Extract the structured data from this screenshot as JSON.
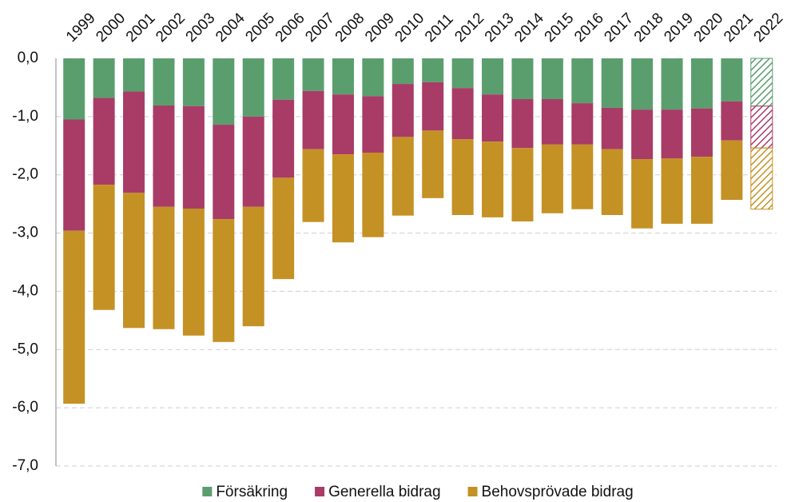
{
  "chart_data": {
    "type": "stacked_bar",
    "categories": [
      "1999",
      "2000",
      "2001",
      "2002",
      "2003",
      "2004",
      "2005",
      "2006",
      "2007",
      "2008",
      "2009",
      "2010",
      "2011",
      "2012",
      "2013",
      "2014",
      "2015",
      "2016",
      "2017",
      "2018",
      "2019",
      "2020",
      "2021",
      "2022"
    ],
    "series": [
      {
        "name": "Försäkring",
        "color": "#5b9e6e",
        "values": [
          -1.05,
          -0.68,
          -0.57,
          -0.81,
          -0.82,
          -1.14,
          -1.0,
          -0.71,
          -0.56,
          -0.62,
          -0.65,
          -0.44,
          -0.41,
          -0.51,
          -0.62,
          -0.7,
          -0.7,
          -0.77,
          -0.85,
          -0.88,
          -0.88,
          -0.86,
          -0.74,
          -0.82
        ]
      },
      {
        "name": "Generella bidrag",
        "color": "#a83c66",
        "values": [
          -1.91,
          -1.49,
          -1.74,
          -1.74,
          -1.76,
          -1.62,
          -1.55,
          -1.34,
          -1.0,
          -1.03,
          -0.97,
          -0.91,
          -0.83,
          -0.88,
          -0.81,
          -0.84,
          -0.78,
          -0.71,
          -0.71,
          -0.85,
          -0.84,
          -0.83,
          -0.67,
          -0.72
        ]
      },
      {
        "name": "Behovsprövade bidrag",
        "color": "#c49124",
        "values": [
          -2.97,
          -2.15,
          -2.32,
          -2.1,
          -2.18,
          -2.11,
          -2.05,
          -1.74,
          -1.25,
          -1.51,
          -1.45,
          -1.35,
          -1.16,
          -1.3,
          -1.3,
          -1.26,
          -1.18,
          -1.11,
          -1.13,
          -1.19,
          -1.12,
          -1.15,
          -1.02,
          -1.05
        ]
      }
    ],
    "hatched_categories": [
      "2022"
    ],
    "ylim": [
      -7,
      0
    ],
    "yticks": [
      {
        "value": 0,
        "label": "0,0"
      },
      {
        "value": -1,
        "label": "-1,0"
      },
      {
        "value": -2,
        "label": "-2,0"
      },
      {
        "value": -3,
        "label": "-3,0"
      },
      {
        "value": -4,
        "label": "-4,0"
      },
      {
        "value": -5,
        "label": "-5,0"
      },
      {
        "value": -6,
        "label": "-6,0"
      },
      {
        "value": -7,
        "label": "-7,0"
      }
    ],
    "grid": true,
    "legend": "bottom"
  }
}
